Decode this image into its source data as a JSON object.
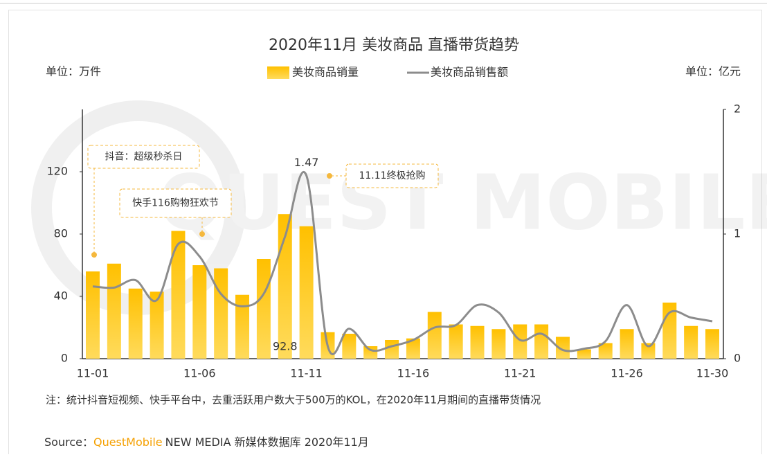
{
  "chart_data": {
    "type": "bar-line",
    "title": "2020年11月 美妆商品 直播带货趋势",
    "y_unit": "单位：万件",
    "y2_unit": "单位：亿元",
    "watermark": "QUEST MOBILE",
    "categories": [
      "11-01",
      null,
      null,
      null,
      null,
      "11-06",
      null,
      null,
      null,
      null,
      "11-11",
      null,
      null,
      null,
      null,
      "11-16",
      null,
      null,
      null,
      null,
      "11-21",
      null,
      null,
      null,
      null,
      "11-26",
      null,
      null,
      null,
      "11-30"
    ],
    "series": [
      {
        "name": "美妆商品销量",
        "type": "bar",
        "color": "#ffc000",
        "values": [
          56,
          61,
          45,
          43,
          82,
          60,
          58,
          41,
          64,
          92.8,
          85,
          17,
          16,
          8,
          12,
          13,
          30,
          22,
          21,
          19,
          22,
          22,
          14,
          6,
          10,
          19,
          10,
          36,
          21,
          19
        ],
        "value_labels": [
          null,
          null,
          null,
          null,
          null,
          null,
          null,
          null,
          null,
          "92.8",
          null,
          null,
          null,
          null,
          null,
          null,
          null,
          null,
          null,
          null,
          null,
          null,
          null,
          null,
          null,
          null,
          null,
          null,
          null,
          null
        ]
      },
      {
        "name": "美妆商品销售额",
        "type": "line",
        "color": "#8c8c8c",
        "axis": "y2",
        "values": [
          0.58,
          0.57,
          0.63,
          0.47,
          0.92,
          0.82,
          0.52,
          0.42,
          0.52,
          0.98,
          1.47,
          0.1,
          0.24,
          0.07,
          0.1,
          0.15,
          0.25,
          0.27,
          0.43,
          0.37,
          0.15,
          0.2,
          0.07,
          0.08,
          0.14,
          0.43,
          0.1,
          0.37,
          0.33,
          0.3
        ],
        "value_labels": [
          null,
          null,
          null,
          null,
          null,
          null,
          null,
          null,
          null,
          null,
          "1.47",
          null,
          null,
          null,
          null,
          null,
          null,
          null,
          null,
          null,
          null,
          null,
          null,
          null,
          null,
          null,
          null,
          null,
          null,
          null
        ]
      }
    ],
    "ylim": [
      0,
      160
    ],
    "yticks": [
      0,
      40,
      80,
      120
    ],
    "y2lim": [
      0,
      2
    ],
    "y2ticks": [
      0,
      1,
      2
    ],
    "annotations": [
      "抖音：超级秒杀日",
      "快手116购物狂欢节",
      "11.11终极抢购"
    ],
    "note": "注：统计抖音短视频、快手平台中，去重活跃用户数大于500万的KOL，在2020年11月期间的直播带货情况",
    "source_label": "Source：",
    "source_brand": "QuestMobile",
    "source_text": "NEW MEDIA 新媒体数据库 2020年11月"
  }
}
